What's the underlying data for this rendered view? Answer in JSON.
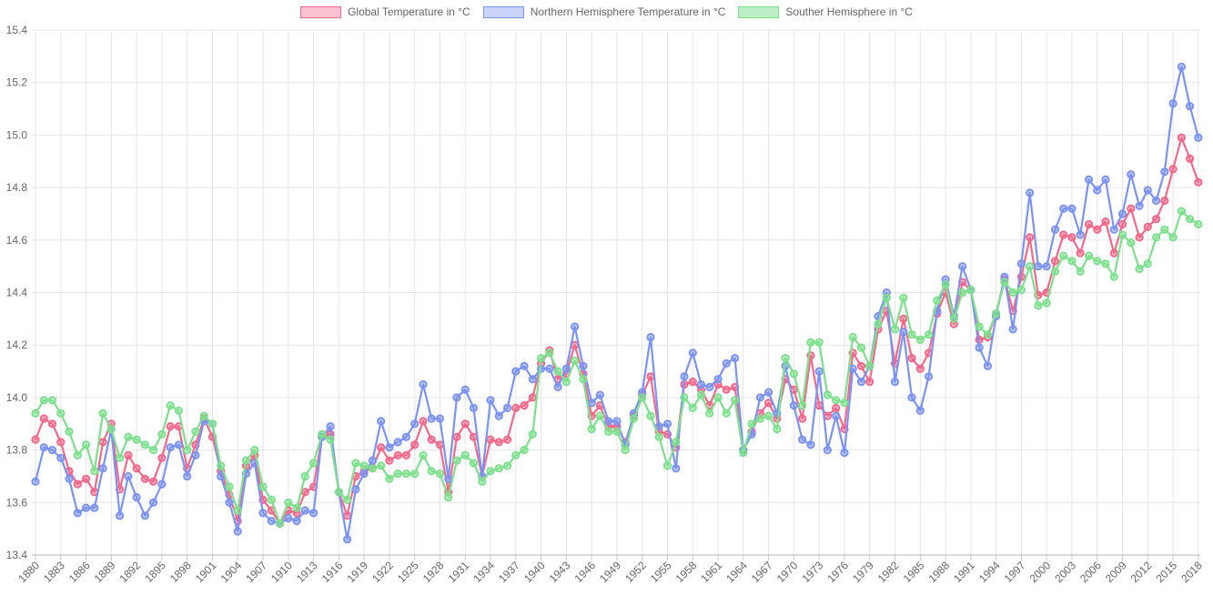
{
  "chart_data": {
    "type": "line",
    "title": "",
    "xlabel": "",
    "ylabel": "",
    "legend_position": "top",
    "grid": true,
    "ylim": [
      13.4,
      15.4
    ],
    "y_ticks": [
      "15.4",
      "15.2",
      "15.0",
      "14.8",
      "14.6",
      "14.4",
      "14.2",
      "14.0",
      "13.8",
      "13.6",
      "13.4"
    ],
    "x_tick_labels": [
      1880,
      1883,
      1886,
      1889,
      1892,
      1895,
      1898,
      1901,
      1904,
      1907,
      1910,
      1913,
      1916,
      1919,
      1922,
      1925,
      1928,
      1931,
      1934,
      1937,
      1940,
      1943,
      1946,
      1949,
      1952,
      1955,
      1958,
      1961,
      1964,
      1967,
      1970,
      1973,
      1976,
      1979,
      1982,
      1985,
      1988,
      1991,
      1994,
      1997,
      2000,
      2003,
      2006,
      2009,
      2012,
      2015,
      2018
    ],
    "x_start": 1880,
    "x_end": 2018,
    "x_step": 1,
    "grid_color": "#e6e6e6",
    "axis_line_color": "#b5b5b5",
    "tick_text_color": "#666666",
    "series": [
      {
        "name": "Global Temperature in °C",
        "color": "#f5688a",
        "fill_color": "rgba(245,104,138,0.4)",
        "values": [
          13.84,
          13.92,
          13.9,
          13.83,
          13.72,
          13.67,
          13.69,
          13.64,
          13.83,
          13.9,
          13.65,
          13.78,
          13.73,
          13.69,
          13.68,
          13.77,
          13.89,
          13.89,
          13.73,
          13.82,
          13.92,
          13.85,
          13.72,
          13.63,
          13.53,
          13.74,
          13.78,
          13.61,
          13.57,
          13.52,
          13.57,
          13.56,
          13.64,
          13.66,
          13.85,
          13.86,
          13.64,
          13.55,
          13.7,
          13.72,
          13.73,
          13.81,
          13.76,
          13.78,
          13.78,
          13.82,
          13.91,
          13.84,
          13.82,
          13.64,
          13.85,
          13.9,
          13.85,
          13.7,
          13.84,
          13.83,
          13.84,
          13.96,
          13.97,
          14.0,
          14.13,
          14.18,
          14.07,
          14.09,
          14.2,
          14.09,
          13.93,
          13.97,
          13.89,
          13.89,
          13.83,
          13.93,
          14.01,
          14.08,
          13.87,
          13.86,
          13.81,
          14.05,
          14.06,
          14.03,
          13.97,
          14.05,
          14.03,
          14.04,
          13.8,
          13.87,
          13.94,
          13.98,
          13.92,
          14.07,
          14.03,
          13.92,
          14.16,
          13.97,
          13.93,
          13.96,
          13.88,
          14.17,
          14.12,
          14.06,
          14.26,
          14.33,
          14.13,
          14.3,
          14.15,
          14.11,
          14.17,
          14.32,
          14.4,
          14.28,
          14.44,
          14.41,
          14.22,
          14.23,
          14.32,
          14.45,
          14.33,
          14.46,
          14.61,
          14.39,
          14.4,
          14.52,
          14.62,
          14.61,
          14.55,
          14.66,
          14.64,
          14.67,
          14.55,
          14.66,
          14.72,
          14.61,
          14.65,
          14.68,
          14.75,
          14.87,
          14.99,
          14.91,
          14.82
        ]
      },
      {
        "name": "Northern Hemisphere Temperature in °C",
        "color": "#7b93f5",
        "fill_color": "rgba(123,147,245,0.4)",
        "values": [
          13.68,
          13.81,
          13.8,
          13.77,
          13.69,
          13.56,
          13.58,
          13.58,
          13.73,
          13.88,
          13.55,
          13.7,
          13.62,
          13.55,
          13.6,
          13.67,
          13.81,
          13.82,
          13.7,
          13.78,
          13.91,
          13.9,
          13.7,
          13.6,
          13.49,
          13.71,
          13.75,
          13.56,
          13.53,
          13.52,
          13.54,
          13.53,
          13.57,
          13.56,
          13.85,
          13.89,
          13.64,
          13.46,
          13.65,
          13.71,
          13.76,
          13.91,
          13.81,
          13.83,
          13.85,
          13.9,
          14.05,
          13.92,
          13.92,
          13.69,
          14.0,
          14.03,
          13.96,
          13.7,
          13.99,
          13.93,
          13.96,
          14.1,
          14.12,
          14.07,
          14.11,
          14.11,
          14.04,
          14.11,
          14.27,
          14.12,
          13.98,
          14.01,
          13.91,
          13.91,
          13.82,
          13.94,
          14.02,
          14.23,
          13.89,
          13.9,
          13.73,
          14.08,
          14.17,
          14.05,
          14.04,
          14.07,
          14.13,
          14.15,
          13.8,
          13.86,
          14.0,
          14.02,
          13.94,
          14.12,
          13.97,
          13.84,
          13.82,
          14.1,
          13.8,
          13.93,
          13.79,
          14.11,
          14.06,
          14.12,
          14.31,
          14.4,
          14.06,
          14.25,
          14.0,
          13.95,
          14.08,
          14.33,
          14.45,
          14.31,
          14.5,
          14.41,
          14.19,
          14.12,
          14.31,
          14.46,
          14.26,
          14.51,
          14.78,
          14.5,
          14.5,
          14.64,
          14.72,
          14.72,
          14.62,
          14.83,
          14.79,
          14.83,
          14.64,
          14.7,
          14.85,
          14.73,
          14.79,
          14.75,
          14.86,
          15.12,
          15.26,
          15.11,
          14.99
        ]
      },
      {
        "name": "Souther Hemisphere in °C",
        "color": "#7ce08d",
        "fill_color": "rgba(124,224,141,0.5)",
        "values": [
          13.94,
          13.99,
          13.99,
          13.94,
          13.87,
          13.78,
          13.82,
          13.72,
          13.94,
          13.88,
          13.77,
          13.85,
          13.84,
          13.82,
          13.8,
          13.86,
          13.97,
          13.95,
          13.8,
          13.87,
          13.93,
          13.9,
          13.74,
          13.66,
          13.57,
          13.76,
          13.8,
          13.66,
          13.61,
          13.52,
          13.6,
          13.58,
          13.7,
          13.75,
          13.86,
          13.84,
          13.64,
          13.61,
          13.75,
          13.74,
          13.73,
          13.74,
          13.69,
          13.71,
          13.71,
          13.71,
          13.78,
          13.72,
          13.71,
          13.62,
          13.76,
          13.78,
          13.75,
          13.68,
          13.72,
          13.73,
          13.74,
          13.78,
          13.8,
          13.86,
          14.15,
          14.17,
          14.1,
          14.06,
          14.14,
          14.07,
          13.88,
          13.93,
          13.87,
          13.87,
          13.8,
          13.92,
          14.0,
          13.93,
          13.85,
          13.74,
          13.83,
          14.0,
          13.96,
          14.01,
          13.94,
          14.0,
          13.94,
          13.99,
          13.79,
          13.9,
          13.92,
          13.93,
          13.88,
          14.15,
          14.09,
          13.97,
          14.21,
          14.21,
          14.01,
          13.99,
          13.98,
          14.23,
          14.19,
          14.12,
          14.28,
          14.38,
          14.26,
          14.38,
          14.24,
          14.22,
          14.24,
          14.37,
          14.43,
          14.3,
          14.4,
          14.41,
          14.27,
          14.24,
          14.32,
          14.44,
          14.4,
          14.41,
          14.5,
          14.35,
          14.36,
          14.48,
          14.54,
          14.52,
          14.48,
          14.54,
          14.52,
          14.51,
          14.46,
          14.62,
          14.59,
          14.49,
          14.51,
          14.61,
          14.64,
          14.61,
          14.71,
          14.68,
          14.66
        ]
      }
    ]
  }
}
